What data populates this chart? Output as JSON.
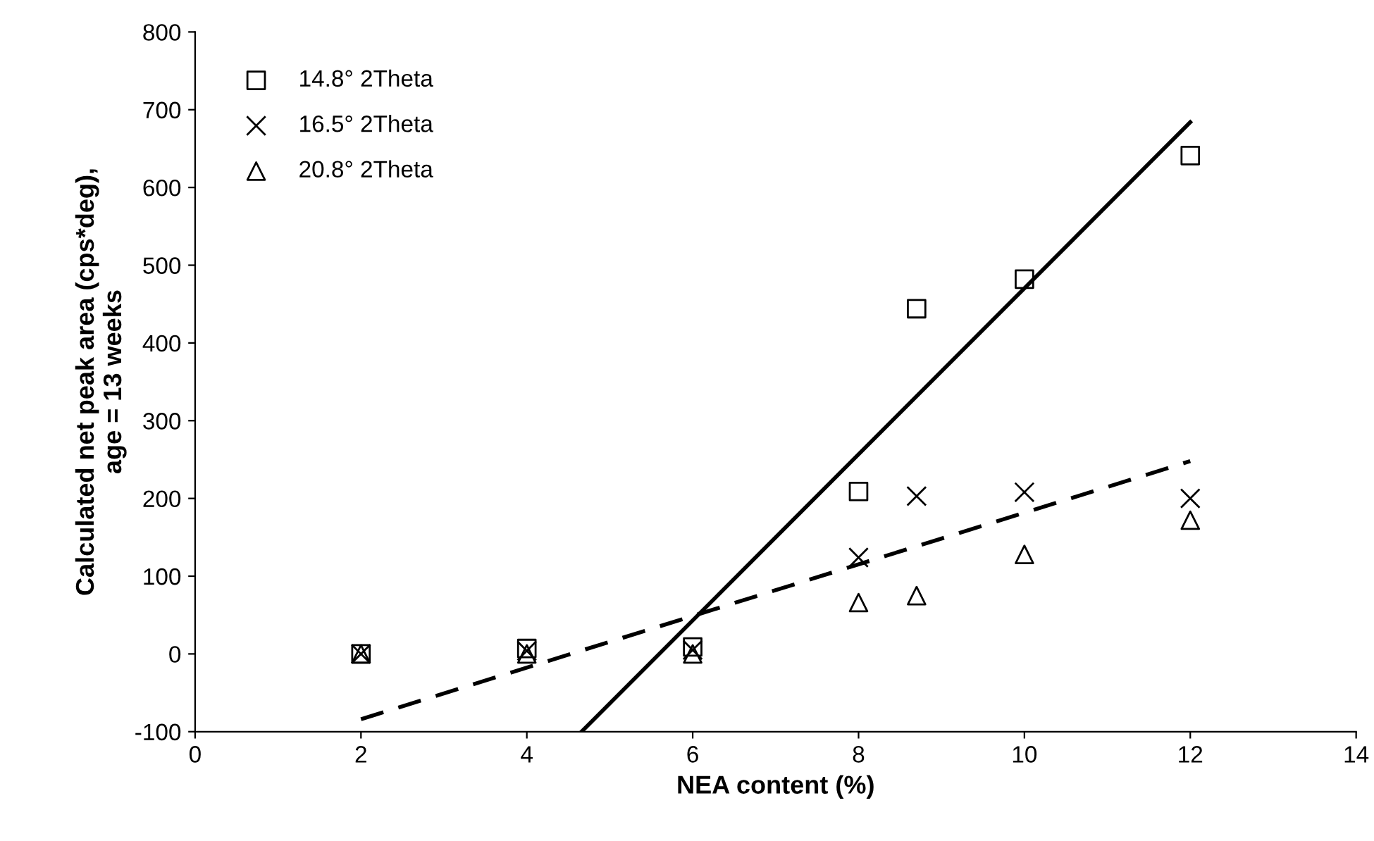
{
  "chart_data": {
    "type": "scatter",
    "xlabel": "NEA content (%)",
    "ylabel": "Calculated net peak area (cps*deg),\nage = 13 weeks",
    "x": [
      2,
      4,
      6,
      8,
      8.7,
      10,
      12
    ],
    "series": [
      {
        "name": "14.8° 2Theta",
        "color": "#000000",
        "marker": "square",
        "values": [
          0,
          7,
          9,
          209,
          444,
          482,
          641
        ]
      },
      {
        "name": "16.5° 2Theta",
        "color": "#000000",
        "marker": "cross",
        "values": [
          0,
          4,
          5,
          124,
          203,
          208,
          200
        ]
      },
      {
        "name": "20.8° 2Theta",
        "color": "#000000",
        "marker": "triangle",
        "values": [
          0,
          0,
          0,
          66,
          75,
          128,
          172
        ]
      },
      {
        "type": "line",
        "color": "#000000",
        "line_style": "solid",
        "x": [
          4.66,
          12
        ],
        "values": [
          -100,
          684
        ]
      },
      {
        "type": "line",
        "color": "#000000",
        "line_style": "dashed",
        "x": [
          2,
          12
        ],
        "values": [
          -84,
          248
        ]
      }
    ],
    "xlim": [
      0,
      14
    ],
    "xticks": [
      0,
      2,
      4,
      6,
      8,
      10,
      12,
      14
    ],
    "ylim": [
      -100,
      800
    ],
    "yticks": [
      -100,
      0,
      100,
      200,
      300,
      400,
      500,
      600,
      700,
      800
    ],
    "grid": false,
    "legend": "top left"
  }
}
